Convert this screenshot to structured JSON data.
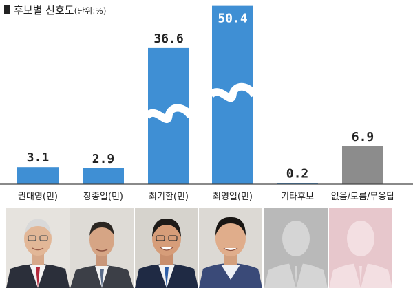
{
  "header": {
    "title": "후보별 선호도",
    "unit": "(단위:%)"
  },
  "chart_data": {
    "type": "bar",
    "title": "후보별 선호도",
    "unit": "%",
    "categories": [
      "권대영(민)",
      "장종일(민)",
      "최기환(민)",
      "최영일(민)",
      "기타후보",
      "없음/모름/무응답"
    ],
    "values": [
      3.1,
      2.9,
      36.6,
      50.4,
      0.2,
      6.9
    ],
    "value_labels": [
      "3.1",
      "2.9",
      "36.6",
      "50.4",
      "0.2",
      "6.9"
    ],
    "axis_break": true,
    "bar_colors": [
      "#3f8fd4",
      "#3f8fd4",
      "#3f8fd4",
      "#3f8fd4",
      "#3f8fd4",
      "#8c8c8c"
    ],
    "grid": false,
    "legend": "none"
  },
  "photos": [
    {
      "name": "권대영",
      "kind": "portrait"
    },
    {
      "name": "장종일",
      "kind": "portrait"
    },
    {
      "name": "최기환",
      "kind": "portrait"
    },
    {
      "name": "최영일",
      "kind": "portrait"
    },
    {
      "name": "기타후보",
      "kind": "silhouette",
      "color": "#b9b9b9"
    },
    {
      "name": "없음/모름/무응답",
      "kind": "silhouette",
      "color": "#e7c7cc"
    }
  ]
}
